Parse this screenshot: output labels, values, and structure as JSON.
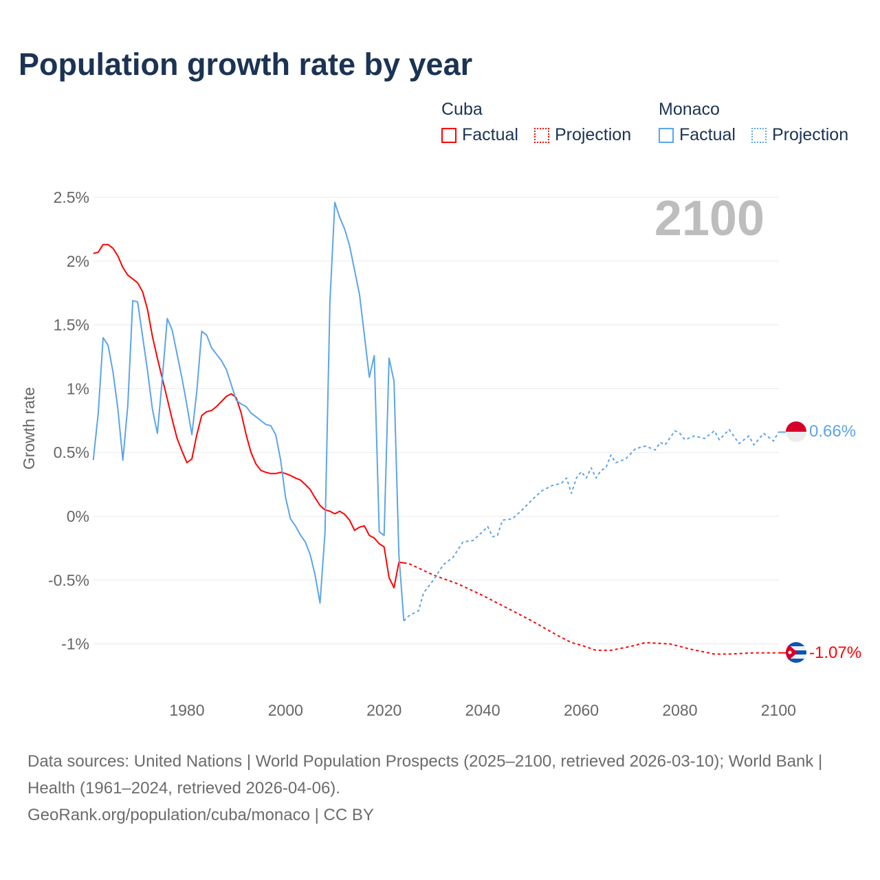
{
  "title": "Population growth rate by year",
  "legend": [
    {
      "name": "Cuba",
      "color": "#ff0000",
      "items": [
        "Factual",
        "Projection"
      ]
    },
    {
      "name": "Monaco",
      "color": "#5ba4ec",
      "items": [
        "Factual",
        "Projection"
      ]
    }
  ],
  "year_overlay": "2100",
  "end_labels": {
    "monaco": "0.66%",
    "cuba": "-1.07%"
  },
  "sources": {
    "line1": "Data sources: United Nations | World Population Prospects (2025–2100, retrieved 2026-03-10); World Bank | Health (1961–2024, retrieved 2026-04-06).",
    "line2": "GeoRank.org/population/cuba/monaco | CC BY"
  },
  "chart_data": {
    "type": "line",
    "title": "Population growth rate by year",
    "xlabel": "",
    "ylabel": "Growth rate",
    "xlim": [
      1961,
      2100
    ],
    "ylim": [
      -1.2,
      2.6
    ],
    "x_ticks": [
      1980,
      2000,
      2020,
      2040,
      2060,
      2080,
      2100
    ],
    "y_ticks": [
      {
        "v": 2.5,
        "label": "2.5%"
      },
      {
        "v": 2,
        "label": "2%"
      },
      {
        "v": 1.5,
        "label": "1.5%"
      },
      {
        "v": 1,
        "label": "1%"
      },
      {
        "v": 0.5,
        "label": "0.5%"
      },
      {
        "v": 0,
        "label": "0%"
      },
      {
        "v": -0.5,
        "label": "-0.5%"
      },
      {
        "v": -1,
        "label": "-1%"
      }
    ],
    "grid": true,
    "legend_position": "top-right",
    "series": [
      {
        "name": "Cuba Factual",
        "color": "#ff0000",
        "dashed": false,
        "start_year": 1961,
        "values": [
          2.06,
          2.07,
          2.13,
          2.13,
          2.1,
          2.04,
          1.95,
          1.89,
          1.86,
          1.83,
          1.76,
          1.62,
          1.41,
          1.24,
          1.08,
          0.92,
          0.76,
          0.61,
          0.51,
          0.42,
          0.45,
          0.64,
          0.79,
          0.82,
          0.83,
          0.86,
          0.9,
          0.94,
          0.96,
          0.93,
          0.81,
          0.64,
          0.5,
          0.41,
          0.36,
          0.345,
          0.335,
          0.335,
          0.345,
          0.335,
          0.32,
          0.3,
          0.285,
          0.25,
          0.21,
          0.145,
          0.085,
          0.05,
          0.04,
          0.02,
          0.04,
          0.015,
          -0.03,
          -0.11,
          -0.085,
          -0.075,
          -0.15,
          -0.17,
          -0.215,
          -0.24,
          -0.48,
          -0.56,
          -0.36,
          -0.365
        ]
      },
      {
        "name": "Cuba Projection",
        "color": "#ff0000",
        "dashed": true,
        "points": [
          [
            2024,
            -0.365
          ],
          [
            2025,
            -0.37
          ],
          [
            2030,
            -0.46
          ],
          [
            2035,
            -0.53
          ],
          [
            2040,
            -0.62
          ],
          [
            2045,
            -0.72
          ],
          [
            2050,
            -0.82
          ],
          [
            2055,
            -0.93
          ],
          [
            2058,
            -0.99
          ],
          [
            2060,
            -1.01
          ],
          [
            2063,
            -1.05
          ],
          [
            2066,
            -1.05
          ],
          [
            2070,
            -1.02
          ],
          [
            2073,
            -0.99
          ],
          [
            2078,
            -1.0
          ],
          [
            2082,
            -1.04
          ],
          [
            2087,
            -1.08
          ],
          [
            2090,
            -1.08
          ],
          [
            2095,
            -1.07
          ],
          [
            2100,
            -1.07
          ]
        ]
      },
      {
        "name": "Monaco Factual",
        "color": "#5ba4ec",
        "dashed": false,
        "start_year": 1961,
        "values": [
          0.44,
          0.81,
          1.4,
          1.34,
          1.13,
          0.84,
          0.44,
          0.87,
          1.69,
          1.68,
          1.41,
          1.14,
          0.84,
          0.65,
          1.08,
          1.55,
          1.46,
          1.27,
          1.08,
          0.87,
          0.64,
          0.98,
          1.45,
          1.42,
          1.32,
          1.27,
          1.22,
          1.15,
          1.03,
          0.91,
          0.88,
          0.86,
          0.81,
          0.78,
          0.75,
          0.72,
          0.71,
          0.64,
          0.44,
          0.15,
          -0.02,
          -0.075,
          -0.145,
          -0.2,
          -0.3,
          -0.46,
          -0.68,
          -0.13,
          1.68,
          2.46,
          2.34,
          2.25,
          2.12,
          1.93,
          1.74,
          1.42,
          1.09,
          1.26,
          -0.12,
          -0.15,
          1.24,
          1.06,
          -0.3,
          -0.82
        ]
      },
      {
        "name": "Monaco Projection",
        "color": "#5ba4ec",
        "dashed": true,
        "points": [
          [
            2024,
            -0.82
          ],
          [
            2025,
            -0.78
          ],
          [
            2027,
            -0.74
          ],
          [
            2028,
            -0.6
          ],
          [
            2030,
            -0.5
          ],
          [
            2032,
            -0.38
          ],
          [
            2034,
            -0.32
          ],
          [
            2036,
            -0.2
          ],
          [
            2038,
            -0.19
          ],
          [
            2040,
            -0.12
          ],
          [
            2041,
            -0.08
          ],
          [
            2042,
            -0.16
          ],
          [
            2043,
            -0.15
          ],
          [
            2044,
            -0.03
          ],
          [
            2046,
            -0.02
          ],
          [
            2048,
            0.05
          ],
          [
            2050,
            0.13
          ],
          [
            2052,
            0.2
          ],
          [
            2054,
            0.24
          ],
          [
            2056,
            0.26
          ],
          [
            2057,
            0.3
          ],
          [
            2058,
            0.18
          ],
          [
            2059,
            0.3
          ],
          [
            2060,
            0.35
          ],
          [
            2061,
            0.3
          ],
          [
            2062,
            0.38
          ],
          [
            2063,
            0.3
          ],
          [
            2064,
            0.36
          ],
          [
            2065,
            0.38
          ],
          [
            2066,
            0.48
          ],
          [
            2067,
            0.42
          ],
          [
            2069,
            0.45
          ],
          [
            2071,
            0.53
          ],
          [
            2073,
            0.55
          ],
          [
            2075,
            0.52
          ],
          [
            2076,
            0.58
          ],
          [
            2077,
            0.56
          ],
          [
            2079,
            0.67
          ],
          [
            2080,
            0.65
          ],
          [
            2081,
            0.6
          ],
          [
            2083,
            0.63
          ],
          [
            2085,
            0.61
          ],
          [
            2087,
            0.67
          ],
          [
            2088,
            0.6
          ],
          [
            2090,
            0.68
          ],
          [
            2092,
            0.57
          ],
          [
            2094,
            0.63
          ],
          [
            2095,
            0.56
          ],
          [
            2097,
            0.65
          ],
          [
            2099,
            0.59
          ],
          [
            2100,
            0.66
          ]
        ]
      }
    ]
  }
}
